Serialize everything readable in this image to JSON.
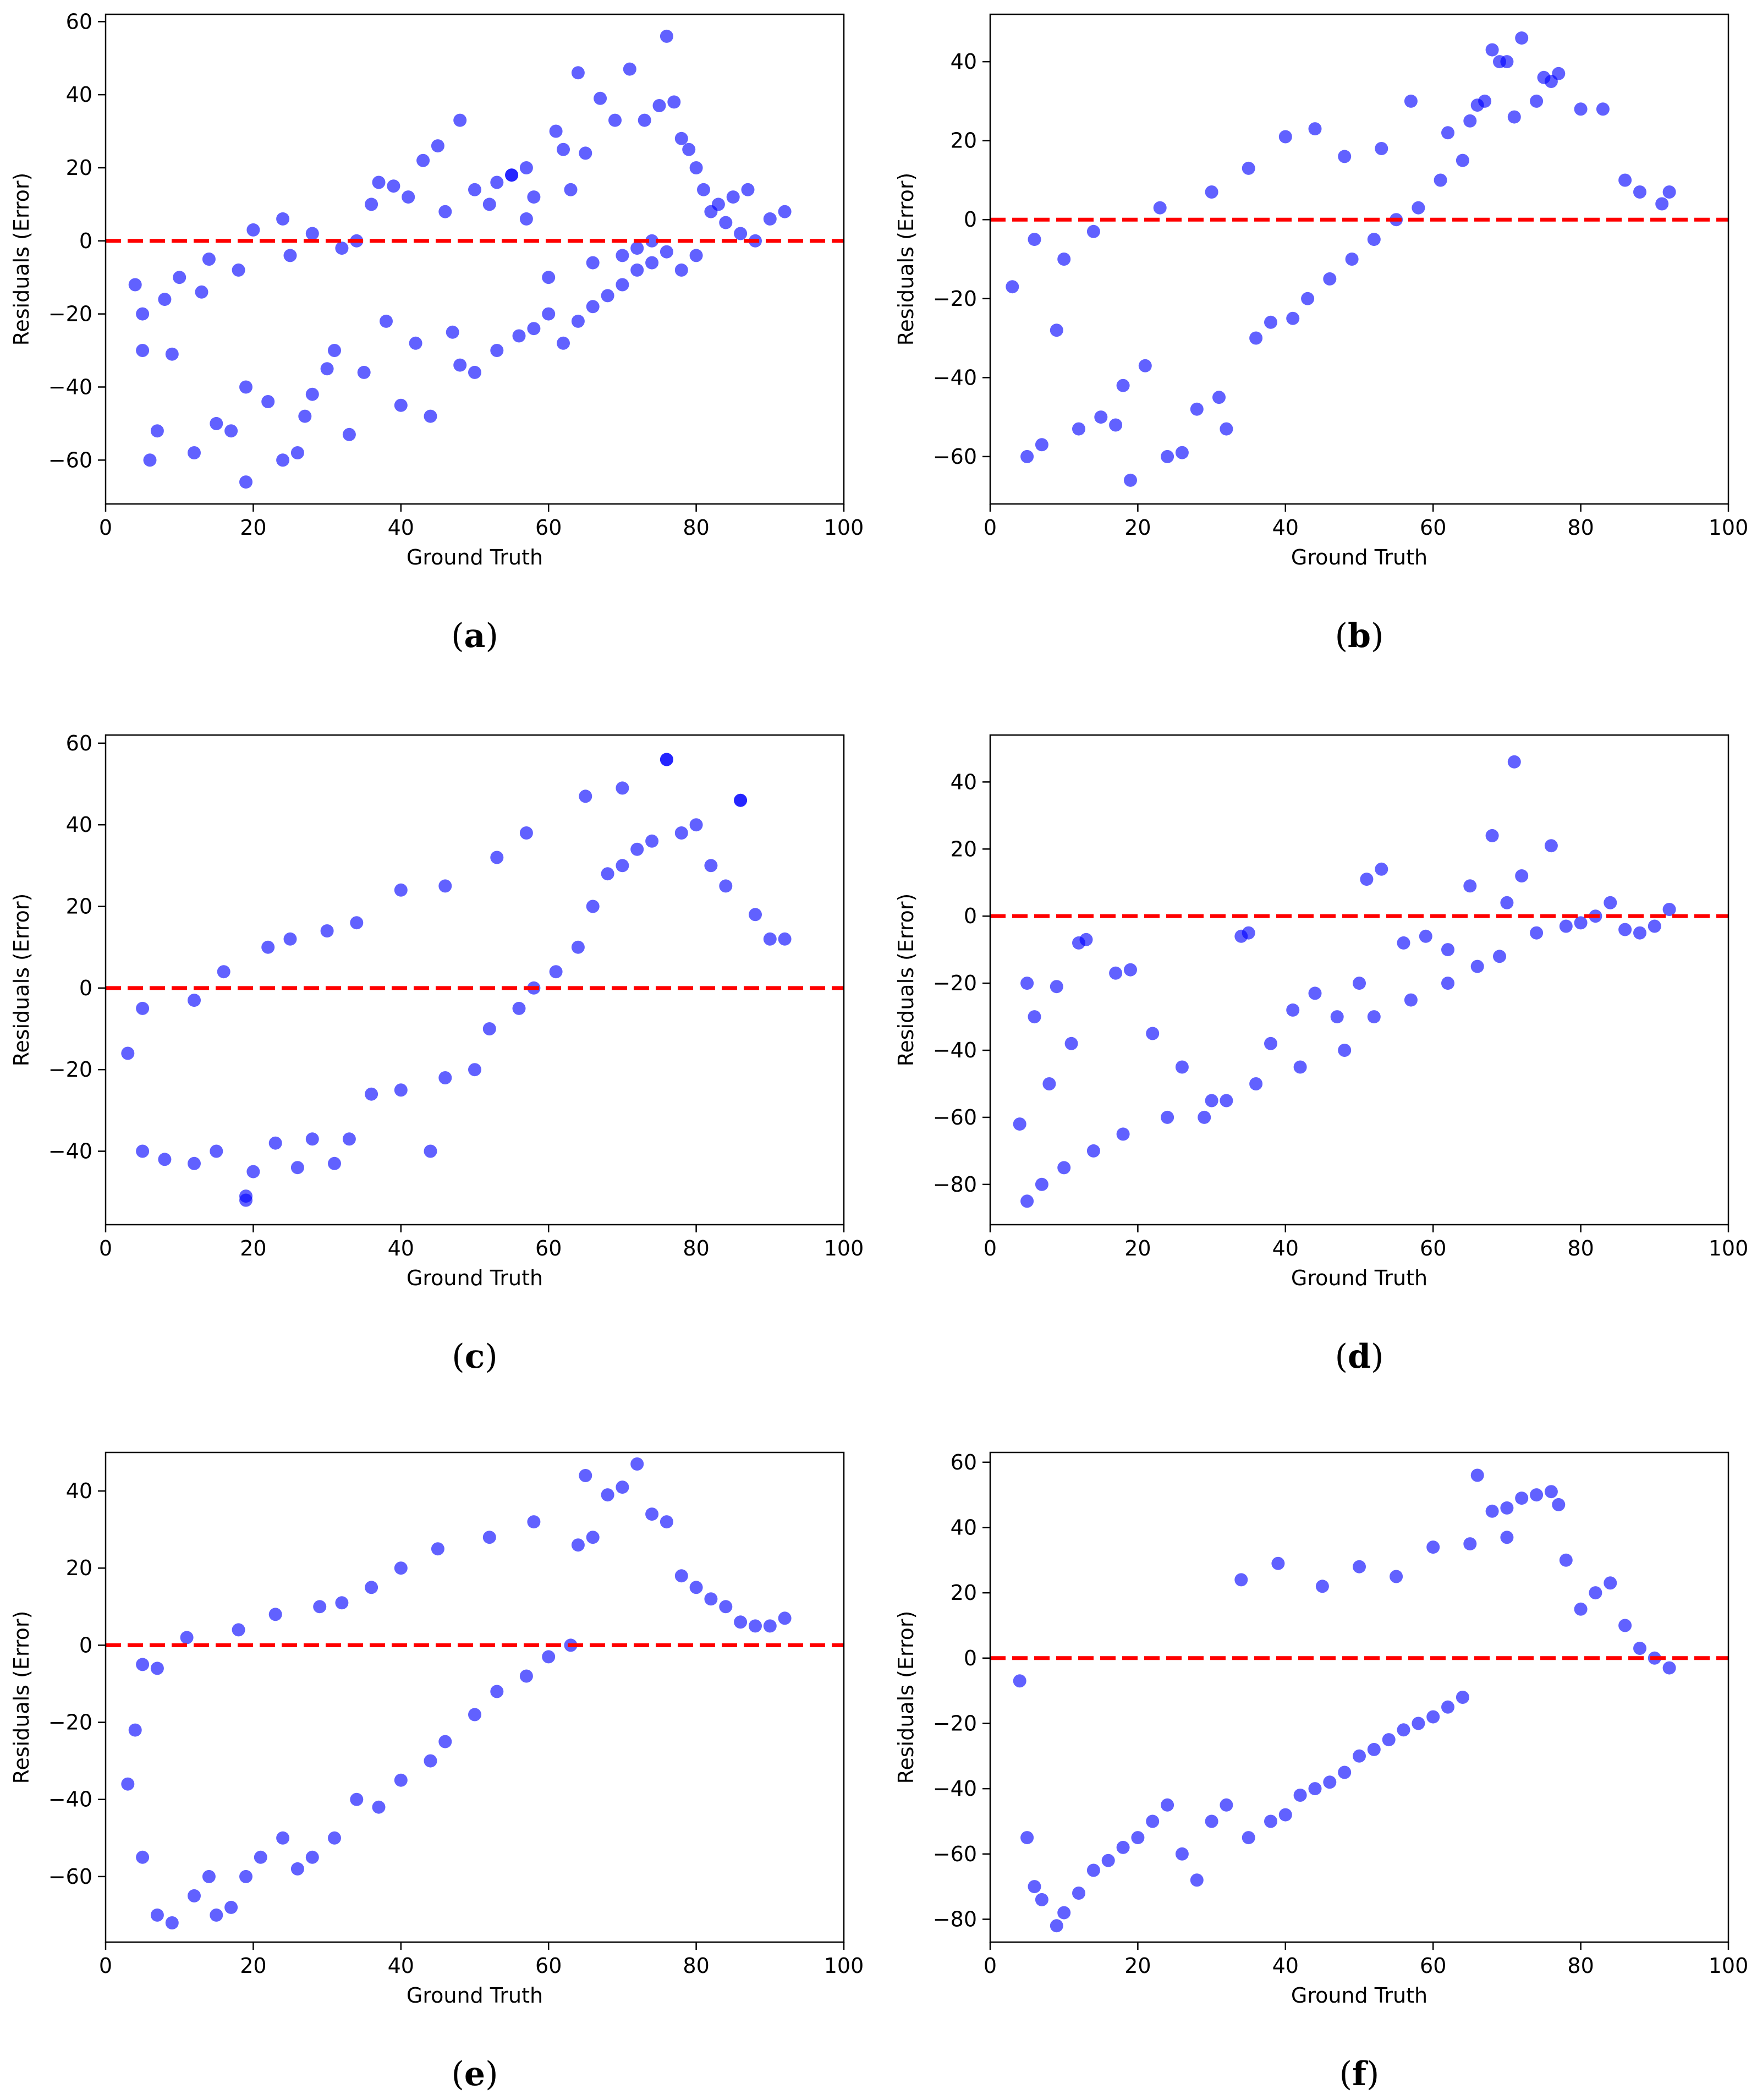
{
  "figure": {
    "colors": {
      "points": "#0000ff",
      "zero_line": "#ff0000",
      "axes": "#000000"
    }
  },
  "chart_data": [
    {
      "type": "scatter",
      "label": "(a)",
      "title": "",
      "xlabel": "Ground Truth",
      "ylabel": "Residuals (Error)",
      "xlim": [
        0,
        100
      ],
      "ylim": [
        -72,
        62
      ],
      "xticks": [
        0,
        20,
        40,
        60,
        80,
        100
      ],
      "yticks": [
        -60,
        -40,
        -20,
        0,
        20,
        40,
        60
      ],
      "reference_line": {
        "y": 0,
        "style": "dashed",
        "color": "#ff0000"
      },
      "series": [
        {
          "name": "residuals",
          "x": [
            4,
            5,
            6,
            5,
            9,
            7,
            12,
            15,
            19,
            17,
            19,
            22,
            24,
            26,
            27,
            30,
            33,
            28,
            31,
            35,
            38,
            40,
            42,
            44,
            48,
            47,
            50,
            53,
            56,
            58,
            60,
            62,
            64,
            66,
            68,
            70,
            72,
            74,
            76,
            76,
            78,
            80,
            82,
            84,
            86,
            88,
            90,
            92,
            10,
            14,
            20,
            24,
            28,
            34,
            36,
            39,
            43,
            45,
            52,
            55,
            58,
            61,
            64,
            67,
            69,
            71,
            73,
            75,
            77,
            79,
            81,
            83,
            85,
            87,
            65,
            63,
            57,
            46,
            41,
            37,
            32,
            25,
            18,
            13,
            8,
            60,
            66,
            70,
            72,
            74,
            78,
            80,
            48,
            50,
            53,
            55,
            57,
            62
          ],
          "y": [
            -12,
            -20,
            -60,
            -30,
            -31,
            -52,
            -58,
            -50,
            -66,
            -52,
            -40,
            -44,
            -60,
            -58,
            -48,
            -35,
            -53,
            -42,
            -30,
            -36,
            -22,
            -45,
            -28,
            -48,
            -34,
            -25,
            -36,
            -30,
            -26,
            -24,
            -20,
            -28,
            -22,
            -18,
            -15,
            -12,
            -8,
            -6,
            -3,
            56,
            28,
            20,
            8,
            5,
            2,
            0,
            6,
            8,
            -10,
            -5,
            3,
            6,
            2,
            0,
            10,
            15,
            22,
            26,
            10,
            18,
            12,
            30,
            46,
            39,
            33,
            47,
            33,
            37,
            38,
            25,
            14,
            10,
            12,
            14,
            24,
            14,
            6,
            8,
            12,
            16,
            -2,
            -4,
            -8,
            -14,
            -16,
            -10,
            -6,
            -4,
            -2,
            0,
            -8,
            -4,
            33,
            14,
            16,
            18,
            20,
            25
          ]
        }
      ]
    },
    {
      "type": "scatter",
      "label": "(b)",
      "title": "",
      "xlabel": "Ground Truth",
      "ylabel": "Residuals (Error)",
      "xlim": [
        0,
        100
      ],
      "ylim": [
        -72,
        52
      ],
      "xticks": [
        0,
        20,
        40,
        60,
        80,
        100
      ],
      "yticks": [
        -60,
        -40,
        -20,
        0,
        20,
        40
      ],
      "reference_line": {
        "y": 0,
        "style": "dashed",
        "color": "#ff0000"
      },
      "series": [
        {
          "name": "residuals",
          "x": [
            3,
            5,
            6,
            7,
            9,
            12,
            15,
            17,
            19,
            18,
            21,
            24,
            26,
            28,
            31,
            32,
            36,
            38,
            41,
            43,
            46,
            49,
            52,
            55,
            58,
            61,
            64,
            67,
            70,
            72,
            75,
            77,
            80,
            83,
            86,
            88,
            91,
            92,
            65,
            68,
            71,
            74,
            76,
            69,
            66,
            62,
            57,
            53,
            48,
            44,
            40,
            35,
            30,
            23,
            14,
            10
          ],
          "y": [
            -17,
            -60,
            -5,
            -57,
            -28,
            -53,
            -50,
            -52,
            -66,
            -42,
            -37,
            -60,
            -59,
            -48,
            -45,
            -53,
            -30,
            -26,
            -25,
            -20,
            -15,
            -10,
            -5,
            0,
            3,
            10,
            15,
            30,
            40,
            46,
            36,
            37,
            28,
            28,
            10,
            7,
            4,
            7,
            25,
            43,
            26,
            30,
            35,
            40,
            29,
            22,
            30,
            18,
            16,
            23,
            21,
            13,
            7,
            3,
            -3,
            -10
          ]
        }
      ]
    },
    {
      "type": "scatter",
      "label": "(c)",
      "title": "",
      "xlabel": "Ground Truth",
      "ylabel": "Residuals (Error)",
      "xlim": [
        0,
        100
      ],
      "ylim": [
        -58,
        62
      ],
      "xticks": [
        0,
        20,
        40,
        60,
        80,
        100
      ],
      "yticks": [
        -40,
        -20,
        0,
        20,
        40,
        60
      ],
      "reference_line": {
        "y": 0,
        "style": "dashed",
        "color": "#ff0000"
      },
      "series": [
        {
          "name": "residuals",
          "x": [
            3,
            5,
            5,
            8,
            12,
            15,
            19,
            20,
            19,
            23,
            26,
            28,
            31,
            33,
            36,
            40,
            44,
            46,
            50,
            52,
            56,
            58,
            61,
            64,
            66,
            68,
            70,
            72,
            74,
            76,
            78,
            80,
            82,
            84,
            86,
            88,
            90,
            92,
            65,
            70,
            76,
            86,
            57,
            53,
            46,
            40,
            34,
            30,
            25,
            22,
            16,
            12
          ],
          "y": [
            -16,
            -40,
            -5,
            -42,
            -43,
            -40,
            -51,
            -45,
            -52,
            -38,
            -44,
            -37,
            -43,
            -37,
            -26,
            -25,
            -40,
            -22,
            -20,
            -10,
            -5,
            0,
            4,
            10,
            20,
            28,
            30,
            34,
            36,
            56,
            38,
            40,
            30,
            25,
            46,
            18,
            12,
            12,
            47,
            49,
            56,
            46,
            38,
            32,
            25,
            24,
            16,
            14,
            12,
            10,
            4,
            -3
          ]
        }
      ]
    },
    {
      "type": "scatter",
      "label": "(d)",
      "title": "",
      "xlabel": "Ground Truth",
      "ylabel": "Residuals (Error)",
      "xlim": [
        0,
        100
      ],
      "ylim": [
        -92,
        54
      ],
      "xticks": [
        0,
        20,
        40,
        60,
        80,
        100
      ],
      "yticks": [
        -80,
        -60,
        -40,
        -20,
        0,
        20,
        40
      ],
      "reference_line": {
        "y": 0,
        "style": "dashed",
        "color": "#ff0000"
      },
      "series": [
        {
          "name": "residuals",
          "x": [
            4,
            5,
            5,
            6,
            8,
            9,
            11,
            12,
            13,
            17,
            19,
            22,
            26,
            29,
            32,
            34,
            35,
            38,
            41,
            44,
            47,
            50,
            51,
            53,
            56,
            59,
            62,
            65,
            68,
            70,
            71,
            72,
            74,
            76,
            78,
            80,
            82,
            84,
            86,
            88,
            90,
            92,
            69,
            66,
            62,
            57,
            52,
            48,
            42,
            36,
            30,
            24,
            18,
            14,
            10,
            7
          ],
          "y": [
            -62,
            -85,
            -20,
            -30,
            -50,
            -21,
            -38,
            -8,
            -7,
            -17,
            -16,
            -35,
            -45,
            -60,
            -55,
            -6,
            -5,
            -38,
            -28,
            -23,
            -30,
            -20,
            11,
            14,
            -8,
            -6,
            -10,
            9,
            24,
            4,
            46,
            12,
            -5,
            21,
            -3,
            -2,
            0,
            4,
            -4,
            -5,
            -3,
            2,
            -12,
            -15,
            -20,
            -25,
            -30,
            -40,
            -45,
            -50,
            -55,
            -60,
            -65,
            -70,
            -75,
            -80
          ]
        }
      ]
    },
    {
      "type": "scatter",
      "label": "(e)",
      "title": "",
      "xlabel": "Ground Truth",
      "ylabel": "Residuals (Error)",
      "xlim": [
        0,
        100
      ],
      "ylim": [
        -77,
        50
      ],
      "xticks": [
        0,
        20,
        40,
        60,
        80,
        100
      ],
      "yticks": [
        -60,
        -40,
        -20,
        0,
        20,
        40
      ],
      "reference_line": {
        "y": 0,
        "style": "dashed",
        "color": "#ff0000"
      },
      "series": [
        {
          "name": "residuals",
          "x": [
            3,
            4,
            5,
            5,
            7,
            9,
            12,
            14,
            15,
            17,
            19,
            21,
            24,
            26,
            28,
            31,
            34,
            37,
            40,
            44,
            46,
            50,
            53,
            57,
            60,
            63,
            65,
            66,
            68,
            70,
            72,
            74,
            76,
            78,
            80,
            82,
            84,
            86,
            88,
            90,
            92,
            64,
            58,
            52,
            45,
            40,
            36,
            32,
            29,
            23,
            18,
            11,
            7
          ],
          "y": [
            -36,
            -22,
            -55,
            -5,
            -70,
            -72,
            -65,
            -60,
            -70,
            -68,
            -60,
            -55,
            -50,
            -58,
            -55,
            -50,
            -40,
            -42,
            -35,
            -30,
            -25,
            -18,
            -12,
            -8,
            -3,
            0,
            44,
            28,
            39,
            41,
            47,
            34,
            32,
            18,
            15,
            12,
            10,
            6,
            5,
            5,
            7,
            26,
            32,
            28,
            25,
            20,
            15,
            11,
            10,
            8,
            4,
            2,
            -6
          ]
        }
      ]
    },
    {
      "type": "scatter",
      "label": "(f)",
      "title": "",
      "xlabel": "Ground Truth",
      "ylabel": "Residuals (Error)",
      "xlim": [
        0,
        100
      ],
      "ylim": [
        -87,
        63
      ],
      "xticks": [
        0,
        20,
        40,
        60,
        80,
        100
      ],
      "yticks": [
        -80,
        -60,
        -40,
        -20,
        0,
        20,
        40,
        60
      ],
      "reference_line": {
        "y": 0,
        "style": "dashed",
        "color": "#ff0000"
      },
      "series": [
        {
          "name": "residuals",
          "x": [
            4,
            5,
            6,
            7,
            9,
            10,
            12,
            14,
            16,
            18,
            20,
            22,
            24,
            26,
            28,
            30,
            32,
            35,
            38,
            40,
            42,
            44,
            46,
            48,
            50,
            52,
            54,
            56,
            58,
            60,
            62,
            64,
            66,
            68,
            70,
            72,
            74,
            76,
            77,
            78,
            80,
            82,
            84,
            86,
            88,
            90,
            92,
            70,
            65,
            60,
            55,
            50,
            45,
            39,
            34
          ],
          "y": [
            -7,
            -55,
            -70,
            -74,
            -82,
            -78,
            -72,
            -65,
            -62,
            -58,
            -55,
            -50,
            -45,
            -60,
            -68,
            -50,
            -45,
            -55,
            -50,
            -48,
            -42,
            -40,
            -38,
            -35,
            -30,
            -28,
            -25,
            -22,
            -20,
            -18,
            -15,
            -12,
            56,
            45,
            46,
            49,
            50,
            51,
            47,
            30,
            15,
            20,
            23,
            10,
            3,
            0,
            -3,
            37,
            35,
            34,
            25,
            28,
            22,
            29,
            24
          ]
        }
      ]
    }
  ]
}
